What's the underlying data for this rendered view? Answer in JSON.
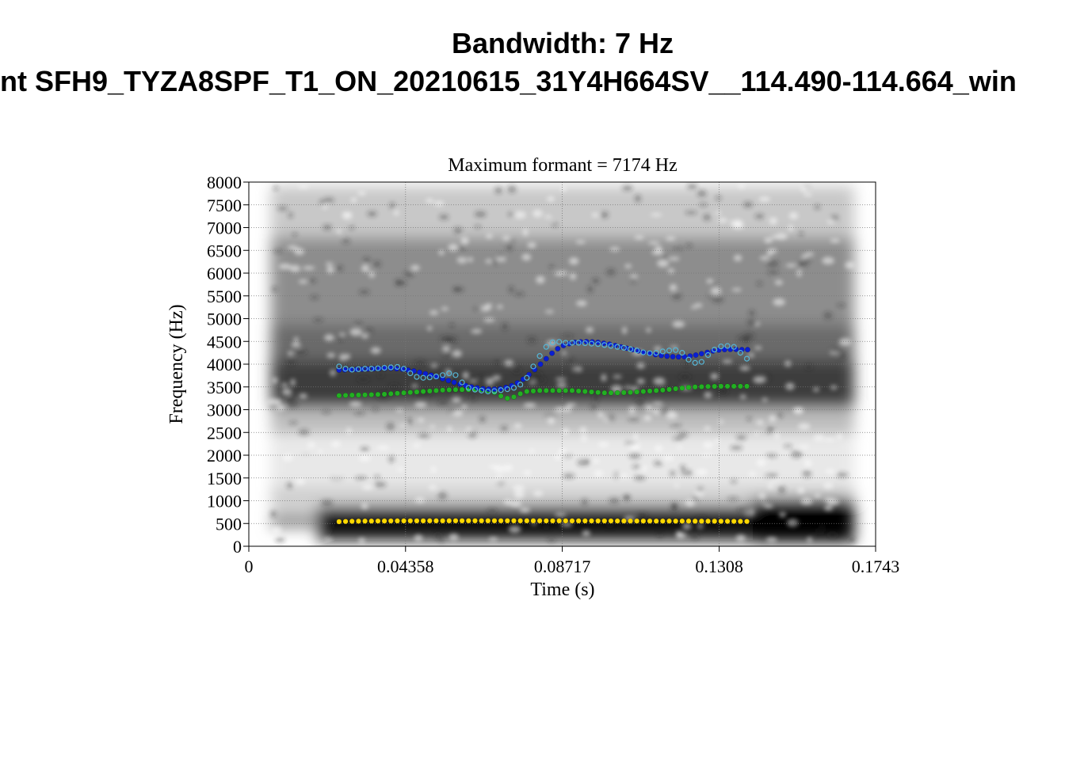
{
  "header": {
    "title_line1": "Bandwidth: 7 Hz",
    "title_line2": "nt SFH9_TYZA8SPF_T1_ON_20210615_31Y4H664SV__114.490-114.664_win"
  },
  "chart_data": {
    "type": "scatter",
    "title": "Maximum formant  =  7174 Hz",
    "xlabel": "Time (s)",
    "ylabel": "Frequency (Hz)",
    "xlim": [
      0,
      0.1743
    ],
    "ylim": [
      0,
      8000
    ],
    "x_tick_labels": [
      "0",
      "0.04358",
      "0.08717",
      "0.1308",
      "0.1743"
    ],
    "x_ticks": [
      0,
      0.04358,
      0.08717,
      0.1308,
      0.1743
    ],
    "y_ticks": [
      0,
      500,
      1000,
      1500,
      2000,
      2500,
      3000,
      3500,
      4000,
      4500,
      5000,
      5500,
      6000,
      6500,
      7000,
      7500,
      8000
    ],
    "grid": true,
    "colors": {
      "F1": "#ffd800",
      "F2": "#22b022",
      "F3": "#0a1ed2",
      "F4": "#55b6d6"
    },
    "series": [
      {
        "id": "F1",
        "marker": "filled",
        "x_start": 0.0251,
        "x_step": 0.0018,
        "count": 64,
        "values": [
          540,
          545,
          548,
          550,
          552,
          553,
          554,
          555,
          556,
          557,
          557,
          558,
          558,
          558,
          559,
          559,
          559,
          559,
          560,
          560,
          560,
          560,
          560,
          560,
          560,
          560,
          560,
          560,
          559,
          559,
          559,
          559,
          558,
          558,
          558,
          558,
          557,
          557,
          557,
          557,
          556,
          556,
          556,
          555,
          555,
          555,
          554,
          554,
          554,
          553,
          553,
          553,
          552,
          552,
          552,
          551,
          551,
          550,
          550,
          549,
          548,
          547,
          546,
          545
        ]
      },
      {
        "id": "F2",
        "marker": "filled",
        "x_start": 0.0251,
        "x_step": 0.0018,
        "count": 64,
        "values": [
          3310,
          3315,
          3320,
          3322,
          3325,
          3330,
          3335,
          3340,
          3350,
          3360,
          3370,
          3380,
          3390,
          3400,
          3410,
          3420,
          3430,
          3435,
          3440,
          3440,
          3440,
          3440,
          3440,
          3420,
          3380,
          3300,
          3250,
          3280,
          3350,
          3400,
          3410,
          3420,
          3420,
          3420,
          3420,
          3420,
          3420,
          3410,
          3400,
          3390,
          3380,
          3370,
          3370,
          3370,
          3375,
          3380,
          3390,
          3400,
          3410,
          3420,
          3430,
          3445,
          3460,
          3475,
          3490,
          3500,
          3505,
          3510,
          3512,
          3514,
          3515,
          3515,
          3515,
          3515
        ]
      },
      {
        "id": "F3",
        "marker": "filled",
        "x_start": 0.0251,
        "x_step": 0.0016,
        "count": 72,
        "values": [
          3870,
          3875,
          3880,
          3885,
          3890,
          3895,
          3900,
          3905,
          3910,
          3910,
          3900,
          3890,
          3870,
          3850,
          3820,
          3790,
          3760,
          3720,
          3680,
          3640,
          3600,
          3560,
          3530,
          3500,
          3480,
          3460,
          3450,
          3450,
          3460,
          3490,
          3530,
          3590,
          3670,
          3770,
          3880,
          4000,
          4120,
          4240,
          4340,
          4410,
          4450,
          4480,
          4490,
          4495,
          4490,
          4480,
          4460,
          4440,
          4410,
          4380,
          4350,
          4320,
          4290,
          4260,
          4230,
          4210,
          4190,
          4175,
          4165,
          4160,
          4165,
          4180,
          4200,
          4230,
          4260,
          4290,
          4310,
          4320,
          4325,
          4325,
          4320,
          4320
        ]
      },
      {
        "id": "F4",
        "marker": "open",
        "x_start": 0.0251,
        "x_step": 0.0018,
        "count": 64,
        "values": [
          3950,
          3900,
          3880,
          3890,
          3900,
          3900,
          3910,
          3920,
          3930,
          3940,
          3900,
          3800,
          3720,
          3700,
          3710,
          3730,
          3760,
          3800,
          3760,
          3600,
          3480,
          3440,
          3420,
          3400,
          3410,
          3430,
          3450,
          3480,
          3550,
          3700,
          3950,
          4180,
          4380,
          4480,
          4490,
          4470,
          4470,
          4470,
          4460,
          4450,
          4440,
          4420,
          4400,
          4380,
          4360,
          4330,
          4300,
          4260,
          4240,
          4250,
          4280,
          4300,
          4310,
          4250,
          4100,
          4030,
          4050,
          4200,
          4320,
          4390,
          4400,
          4380,
          4250,
          4120
        ]
      }
    ]
  }
}
